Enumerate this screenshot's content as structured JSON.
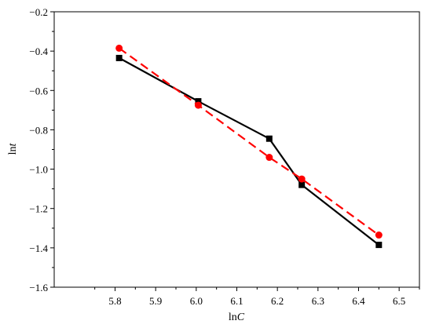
{
  "chart_data": {
    "type": "line",
    "title": "",
    "xlabel": {
      "prefix": "ln",
      "italic": "C"
    },
    "ylabel": {
      "prefix": "ln",
      "italic": "t"
    },
    "xlim": [
      5.65,
      6.55
    ],
    "ylim": [
      -1.6,
      -0.2
    ],
    "xticks": [
      "5.8",
      "5.9",
      "6.0",
      "6.1",
      "6.2",
      "6.3",
      "6.4",
      "6.5"
    ],
    "yticks": [
      "-0.2",
      "-0.4",
      "-0.6",
      "-0.8",
      "-1.0",
      "-1.2",
      "-1.4",
      "-1.6"
    ],
    "grid": false,
    "series": [
      {
        "style": "solid",
        "marker": "square",
        "color": "#000000",
        "x": [
          5.81,
          6.005,
          6.18,
          6.26,
          6.45
        ],
        "y": [
          -0.435,
          -0.655,
          -0.845,
          -1.08,
          -1.385
        ]
      },
      {
        "style": "dashed",
        "marker": "circle",
        "color": "#ff0000",
        "x": [
          5.81,
          6.005,
          6.18,
          6.26,
          6.45
        ],
        "y": [
          -0.385,
          -0.675,
          -0.94,
          -1.05,
          -1.335
        ]
      }
    ]
  }
}
